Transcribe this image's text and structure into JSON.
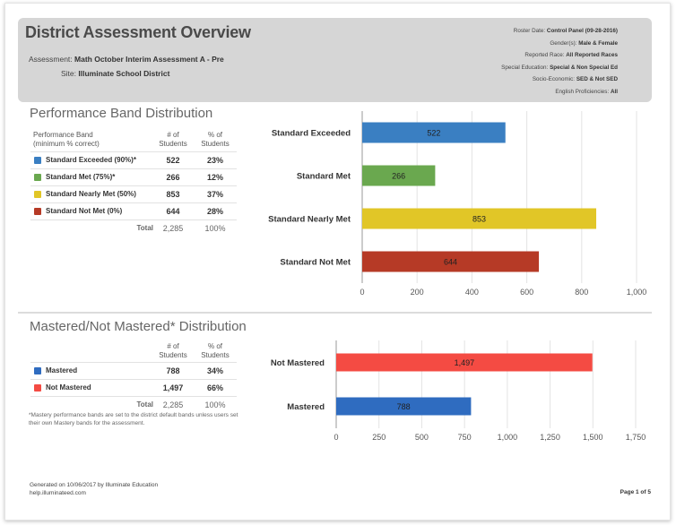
{
  "header": {
    "title": "District Assessment Overview",
    "assessment_label": "Assessment:",
    "assessment_value": "Math October Interim Assessment A - Pre",
    "site_label": "Site:",
    "site_value": "Illuminate School District",
    "meta": [
      {
        "label": "Roster Date:",
        "value": "Control Panel (09-28-2016)"
      },
      {
        "label": "Gender(s):",
        "value": "Male & Female"
      },
      {
        "label": "Reported Race:",
        "value": "All Reported Races"
      },
      {
        "label": "Special Education:",
        "value": "Special & Non Special Ed"
      },
      {
        "label": "Socio-Economic:",
        "value": "SED & Not SED"
      },
      {
        "label": "English Proficiencies:",
        "value": "All"
      }
    ]
  },
  "performance": {
    "title": "Performance Band Distribution",
    "col_band": "Performance Band",
    "col_band_sub": "(minimum % correct)",
    "col_n_1": "# of",
    "col_n_2": "Students",
    "col_p_1": "% of",
    "col_p_2": "Students",
    "rows": [
      {
        "label": "Standard Exceeded (90%)*",
        "count": "522",
        "pct": "23%",
        "color": "#3a7fc2"
      },
      {
        "label": "Standard Met (75%)*",
        "count": "266",
        "pct": "12%",
        "color": "#6aa84f"
      },
      {
        "label": "Standard Nearly Met (50%)",
        "count": "853",
        "pct": "37%",
        "color": "#e1c627"
      },
      {
        "label": "Standard Not Met (0%)",
        "count": "644",
        "pct": "28%",
        "color": "#b63a26"
      }
    ],
    "total_label": "Total",
    "total_count": "2,285",
    "total_pct": "100%"
  },
  "mastery": {
    "title": "Mastered/Not Mastered* Distribution",
    "col_n_1": "# of",
    "col_n_2": "Students",
    "col_p_1": "% of",
    "col_p_2": "Students",
    "rows": [
      {
        "label": "Mastered",
        "count": "788",
        "pct": "34%",
        "color": "#2f6cc0"
      },
      {
        "label": "Not Mastered",
        "count": "1,497",
        "pct": "66%",
        "color": "#f44b43"
      }
    ],
    "total_label": "Total",
    "total_count": "2,285",
    "total_pct": "100%",
    "footnote": "*Mastery performance bands are set to the district default bands unless users set their own Mastery bands for the assessment."
  },
  "chart_data": [
    {
      "type": "bar",
      "orientation": "horizontal",
      "categories": [
        "Standard Exceeded",
        "Standard Met",
        "Standard Nearly Met",
        "Standard Not Met"
      ],
      "values": [
        522,
        266,
        853,
        644
      ],
      "value_labels": [
        "522",
        "266",
        "853",
        "644"
      ],
      "colors": [
        "#3a7fc2",
        "#6aa84f",
        "#e1c627",
        "#b63a26"
      ],
      "xlim": [
        0,
        1000
      ],
      "ticks": [
        0,
        200,
        400,
        600,
        800,
        1000
      ],
      "tick_labels": [
        "0",
        "200",
        "400",
        "600",
        "800",
        "1,000"
      ],
      "grid": true
    },
    {
      "type": "bar",
      "orientation": "horizontal",
      "categories": [
        "Not Mastered",
        "Mastered"
      ],
      "values": [
        1497,
        788
      ],
      "value_labels": [
        "1,497",
        "788"
      ],
      "colors": [
        "#f44b43",
        "#2f6cc0"
      ],
      "xlim": [
        0,
        1750
      ],
      "ticks": [
        0,
        250,
        500,
        750,
        1000,
        1250,
        1500,
        1750
      ],
      "tick_labels": [
        "0",
        "250",
        "500",
        "750",
        "1,000",
        "1,250",
        "1,500",
        "1,750"
      ],
      "grid": true
    }
  ],
  "footer": {
    "generated": "Generated on 10/06/2017 by Illuminate Education",
    "url": "help.illuminateed.com",
    "page": "Page 1 of 5"
  }
}
